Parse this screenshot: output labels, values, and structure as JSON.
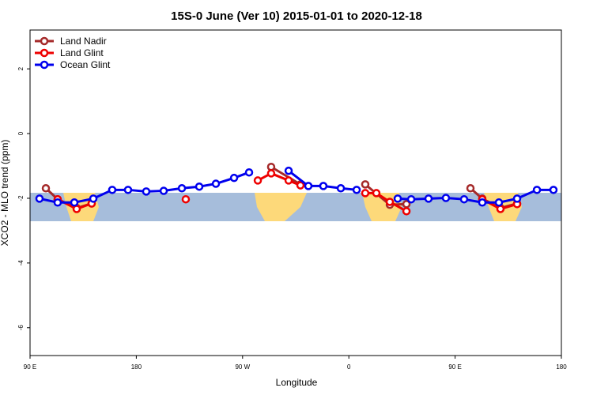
{
  "chart_data": {
    "type": "line",
    "title": "15S-0 June (Ver 10)   2015-01-01 to 2020-12-18",
    "x_label": "Longitude",
    "y_label": "XCO2 - MLO trend (ppm)",
    "xlim": [
      90,
      540
    ],
    "xticks": [
      {
        "value": 90,
        "label": "90 E"
      },
      180,
      {
        "value": 270,
        "label": "90 W"
      },
      {
        "value": 360,
        "label": "0"
      },
      {
        "value": 450,
        "label": "90 E"
      },
      {
        "value": 540,
        "label": "180"
      }
    ],
    "ylim": [
      -6.86,
      3.2
    ],
    "yticks": [
      2,
      0,
      -2,
      -4,
      -6
    ],
    "legend": "top-left",
    "series": [
      {
        "name": "Land Nadir",
        "color": "#a52a2a",
        "x": [
          103.4,
          113.4,
          129.5,
          142.2,
          null,
          294.2,
          319,
          null,
          373.9,
          394.7,
          408.8,
          null,
          463,
          473,
          488.4,
          502.5
        ],
        "values": [
          -1.69,
          -2.03,
          -2.3,
          -2.16,
          null,
          -1.03,
          -1.57,
          null,
          -1.57,
          -2.2,
          -2.18,
          null,
          -1.69,
          -2.01,
          -2.3,
          -2.16
        ]
      },
      {
        "name": "Land Glint",
        "color": "#ee0000",
        "x": [
          113.4,
          129.5,
          142.2,
          null,
          221.9,
          null,
          282.9,
          294.2,
          309,
          319,
          null,
          373.9,
          383.3,
          394.7,
          408.8,
          null,
          473,
          488.4,
          502.5
        ],
        "values": [
          -2.03,
          -2.33,
          -2.16,
          null,
          -2.03,
          null,
          -1.45,
          -1.23,
          -1.45,
          -1.6,
          null,
          -1.84,
          -1.84,
          -2.11,
          -2.4,
          null,
          -2.03,
          -2.33,
          -2.18
        ]
      },
      {
        "name": "Ocean Glint",
        "color": "#0000ee",
        "x": [
          98,
          113.4,
          127.5,
          143.6,
          159.6,
          173,
          188.4,
          203.2,
          218.6,
          233.3,
          247.4,
          262.8,
          275.5,
          null,
          309,
          325.7,
          338.4,
          353.2,
          366.6,
          null,
          401.4,
          412.8,
          427.5,
          442.2,
          457.6,
          473,
          487.1,
          502.5,
          519.3,
          533.3
        ],
        "values": [
          -2.01,
          -2.13,
          -2.13,
          -2.01,
          -1.74,
          -1.74,
          -1.79,
          -1.77,
          -1.69,
          -1.64,
          -1.55,
          -1.37,
          -1.2,
          null,
          -1.15,
          -1.62,
          -1.62,
          -1.69,
          -1.74,
          null,
          -2.01,
          -2.03,
          -2.01,
          -1.99,
          -2.03,
          -2.13,
          -2.13,
          -2.01,
          -1.74,
          -1.74
        ]
      }
    ]
  }
}
